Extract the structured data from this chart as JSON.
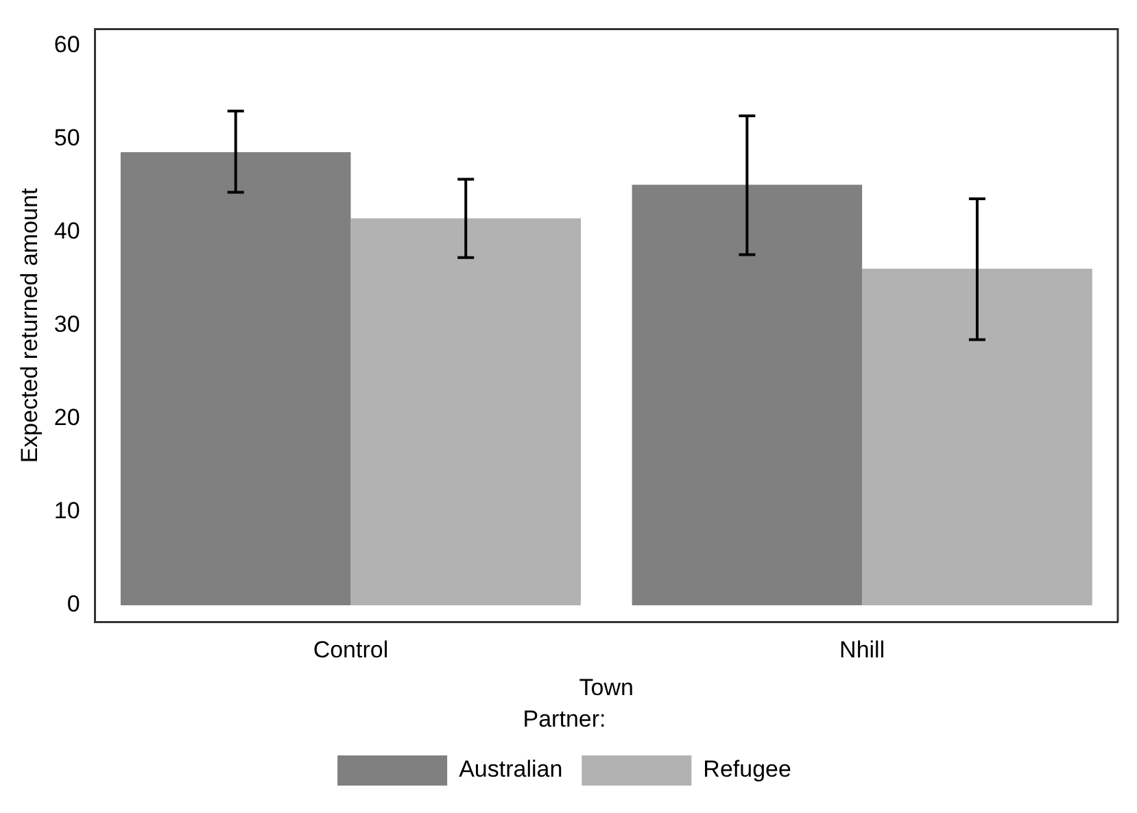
{
  "chart_data": {
    "type": "bar",
    "xlabel": "Town",
    "ylabel": "Expected returned amount",
    "legend_title": "Partner:",
    "categories": [
      "Control",
      "Nhill"
    ],
    "series": [
      {
        "name": "Australian",
        "color": "#808080",
        "values": [
          48.6,
          45.1
        ],
        "errors": [
          [
            44.3,
            53.0
          ],
          [
            37.6,
            52.5
          ]
        ]
      },
      {
        "name": "Refugee",
        "color": "#b2b2b2",
        "values": [
          41.5,
          36.1
        ],
        "errors": [
          [
            37.3,
            45.7
          ],
          [
            28.5,
            43.6
          ]
        ]
      }
    ],
    "ylim": [
      -1.8,
      61.8
    ],
    "yticks": [
      0,
      10,
      20,
      30,
      40,
      50,
      60
    ],
    "grid": false,
    "legend": "bottom"
  }
}
